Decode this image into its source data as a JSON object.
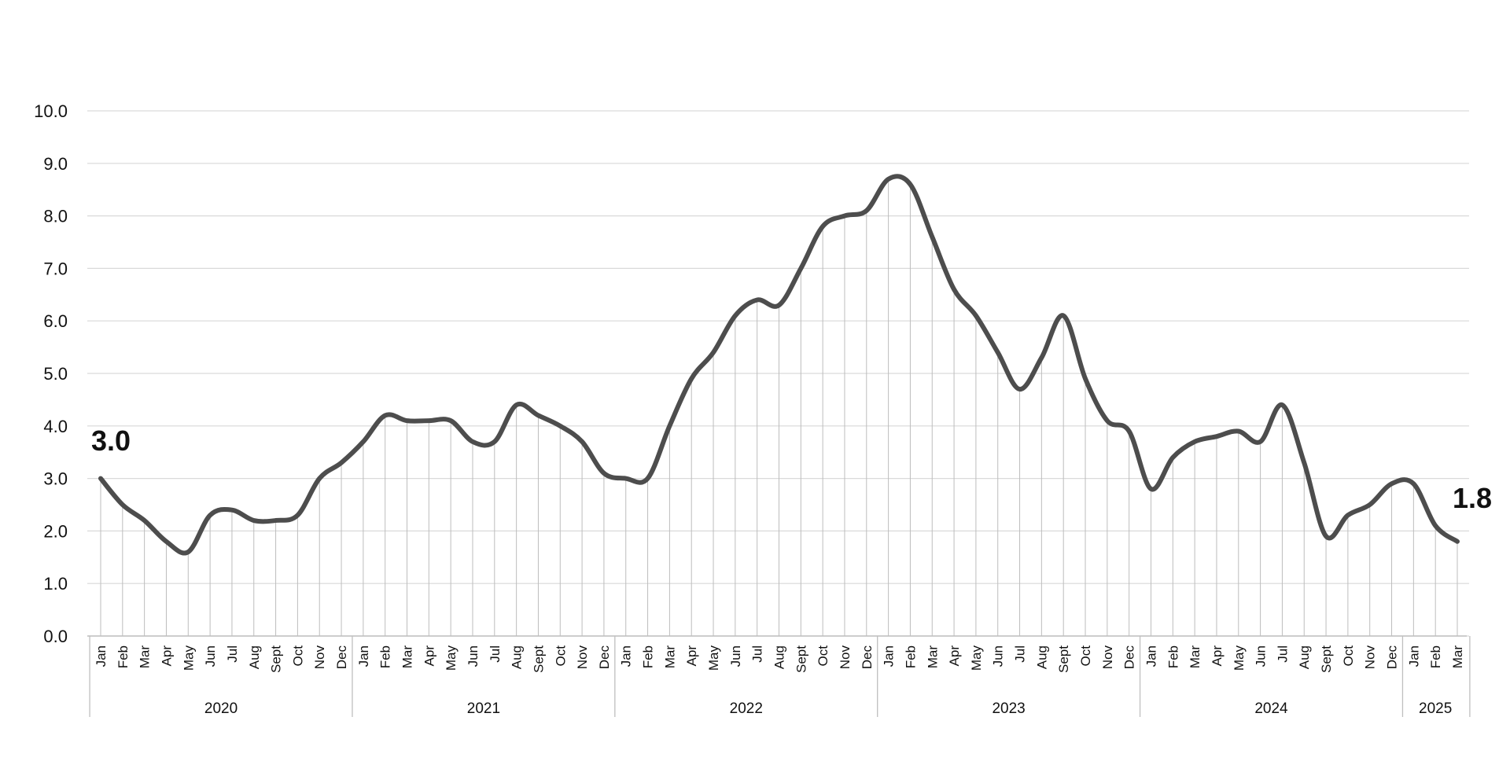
{
  "chart_data": {
    "type": "line",
    "title": "",
    "xlabel": "",
    "ylabel": "",
    "ylim": [
      0,
      10
    ],
    "yticks": [
      "0.0",
      "1.0",
      "2.0",
      "3.0",
      "4.0",
      "5.0",
      "6.0",
      "7.0",
      "8.0",
      "9.0",
      "10.0"
    ],
    "grid": true,
    "drop_lines": true,
    "colors": {
      "line": "#4d4d4d",
      "grid": "#d9d9d9",
      "drop": "#bdbdbd",
      "axis": "#bfbfbf"
    },
    "years": [
      {
        "label": "2020",
        "months": [
          "Jan",
          "Feb",
          "Mar",
          "Apr",
          "May",
          "Jun",
          "Jul",
          "Aug",
          "Sept",
          "Oct",
          "Nov",
          "Dec"
        ]
      },
      {
        "label": "2021",
        "months": [
          "Jan",
          "Feb",
          "Mar",
          "Apr",
          "May",
          "Jun",
          "Jul",
          "Aug",
          "Sept",
          "Oct",
          "Nov",
          "Dec"
        ]
      },
      {
        "label": "2022",
        "months": [
          "Jan",
          "Feb",
          "Mar",
          "Apr",
          "May",
          "Jun",
          "Jul",
          "Aug",
          "Sept",
          "Oct",
          "Nov",
          "Dec"
        ]
      },
      {
        "label": "2023",
        "months": [
          "Jan",
          "Feb",
          "Mar",
          "Apr",
          "May",
          "Jun",
          "Jul",
          "Aug",
          "Sept",
          "Oct",
          "Nov",
          "Dec"
        ]
      },
      {
        "label": "2024",
        "months": [
          "Jan",
          "Feb",
          "Mar",
          "Apr",
          "May",
          "Jun",
          "Jul",
          "Aug",
          "Sept",
          "Oct",
          "Nov",
          "Dec"
        ]
      },
      {
        "label": "2025",
        "months": [
          "Jan",
          "Feb",
          "Mar"
        ]
      }
    ],
    "series": [
      {
        "values": [
          3.0,
          2.5,
          2.2,
          1.8,
          1.6,
          2.3,
          2.4,
          2.2,
          2.2,
          2.3,
          3.0,
          3.3,
          3.7,
          4.2,
          4.1,
          4.1,
          4.1,
          3.7,
          3.7,
          4.4,
          4.2,
          4.0,
          3.7,
          3.1,
          3.0,
          3.0,
          4.0,
          4.9,
          5.4,
          6.1,
          6.4,
          6.3,
          7.0,
          7.8,
          8.0,
          8.1,
          8.7,
          8.6,
          7.6,
          6.6,
          6.1,
          5.4,
          4.7,
          5.3,
          6.1,
          4.9,
          4.1,
          3.9,
          2.8,
          3.4,
          3.7,
          3.8,
          3.9,
          3.7,
          4.4,
          3.3,
          1.9,
          2.3,
          2.5,
          2.9,
          2.9,
          2.1,
          1.8
        ]
      }
    ],
    "annotations": [
      {
        "text": "3.0",
        "index": 0
      },
      {
        "text": "1.8",
        "index": 62
      }
    ]
  }
}
